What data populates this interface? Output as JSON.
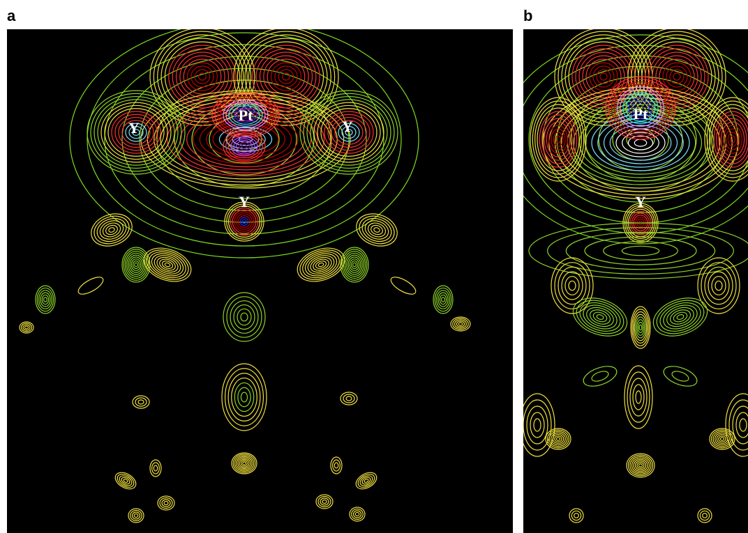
{
  "panels": [
    {
      "label": "a",
      "atoms": [
        "Pt",
        "Y",
        "Y",
        "Y"
      ]
    },
    {
      "label": "b",
      "atoms": [
        "Pt",
        "Y"
      ]
    }
  ]
}
